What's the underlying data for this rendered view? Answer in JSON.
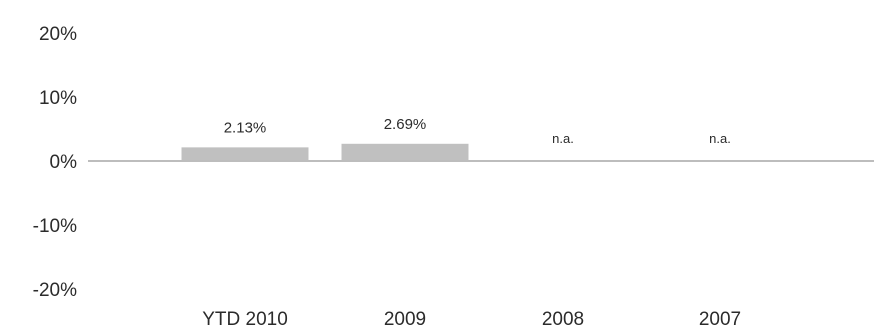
{
  "chart_data": {
    "type": "bar",
    "categories": [
      "YTD 2010",
      "2009",
      "2008",
      "2007"
    ],
    "values": [
      2.13,
      2.69,
      null,
      null
    ],
    "data_labels": [
      "2.13%",
      "2.69%",
      "n.a.",
      "n.a."
    ],
    "y_ticks": [
      "20%",
      "10%",
      "0%",
      "-10%",
      "-20%"
    ],
    "y_tick_values": [
      20,
      10,
      0,
      -10,
      -20
    ],
    "ylim": [
      -20,
      20
    ],
    "grid": false,
    "legend": "none",
    "colors": {
      "bar": "#c0c0c0",
      "axis": "#bdbdbd",
      "text": "#2b2b2b"
    }
  }
}
